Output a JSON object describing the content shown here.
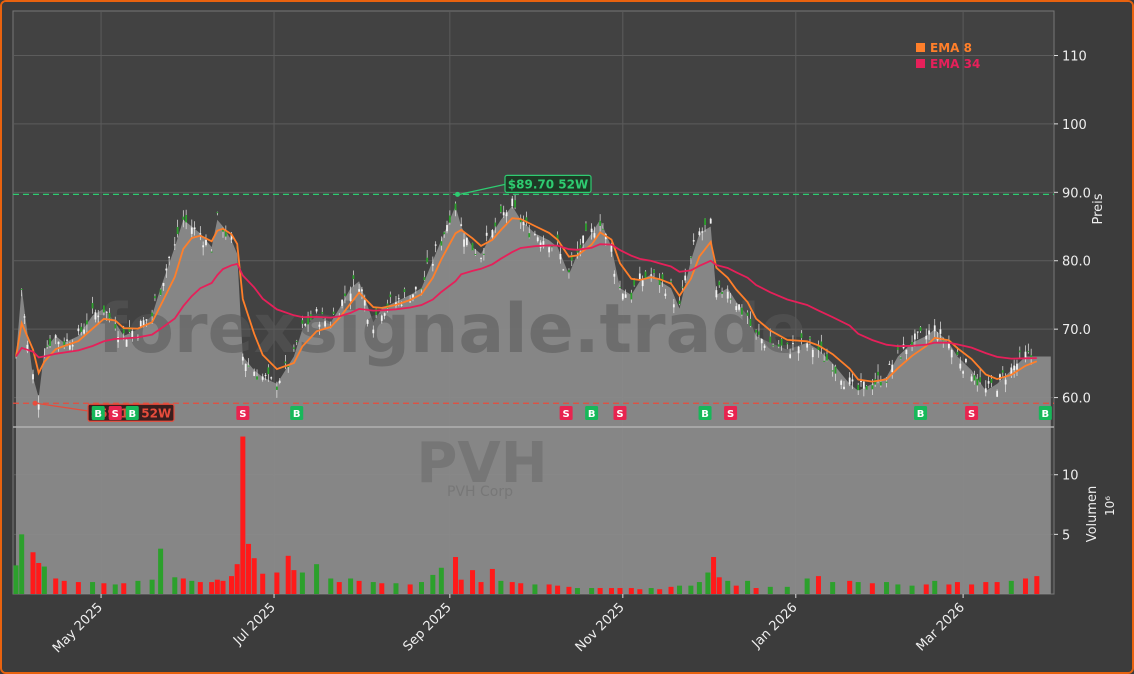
{
  "chart_data": {
    "type": "candlestick",
    "title": "",
    "watermark": "forexsignale.trade",
    "ticker_watermark": "PVH",
    "company_watermark": "PVH Corp",
    "price_axis": {
      "label": "Preis",
      "ticks": [
        "60.0",
        "70.0",
        "80.0",
        "90.0",
        "100",
        "110"
      ],
      "ylim": [
        55.7,
        116.5
      ]
    },
    "volume_axis": {
      "label": "Volumen",
      "multiplier": "10⁶",
      "ticks": [
        "5",
        "10"
      ],
      "ylim": [
        0,
        14
      ]
    },
    "x_axis": {
      "ticks": [
        "May 2025",
        "Jul 2025",
        "Sep 2025",
        "Nov 2025",
        "Jan 2026",
        "Mar 2026"
      ],
      "tick_dates": [
        "2025-05-01",
        "2025-07-01",
        "2025-09-01",
        "2025-11-01",
        "2026-01-01",
        "2026-03-01"
      ],
      "range": [
        "2025-04-01",
        "2026-04-01"
      ]
    },
    "legend": {
      "placement": "top-right",
      "items": [
        {
          "name": "EMA 8",
          "color": "#ff7f2a"
        },
        {
          "name": "EMA 34",
          "color": "#e6205a"
        }
      ]
    },
    "high_52w": {
      "value": 89.7,
      "label": "$89.70 52W",
      "date": "2025-09-03",
      "color": "#2ecc71"
    },
    "low_52w": {
      "value": 59.17,
      "label": "$59.17 52W",
      "date": "2025-04-07",
      "color": "#e74c3c"
    },
    "close_series": [
      [
        "2025-04-01",
        66
      ],
      [
        "2025-04-03",
        76
      ],
      [
        "2025-04-07",
        63
      ],
      [
        "2025-04-09",
        60
      ],
      [
        "2025-04-11",
        67
      ],
      [
        "2025-04-15",
        69
      ],
      [
        "2025-04-18",
        68
      ],
      [
        "2025-04-23",
        69
      ],
      [
        "2025-04-28",
        72
      ],
      [
        "2025-05-02",
        73
      ],
      [
        "2025-05-06",
        71
      ],
      [
        "2025-05-09",
        69
      ],
      [
        "2025-05-14",
        70
      ],
      [
        "2025-05-19",
        72
      ],
      [
        "2025-05-22",
        76
      ],
      [
        "2025-05-27",
        82
      ],
      [
        "2025-05-30",
        86
      ],
      [
        "2025-06-02",
        85
      ],
      [
        "2025-06-05",
        84
      ],
      [
        "2025-06-09",
        82
      ],
      [
        "2025-06-11",
        86
      ],
      [
        "2025-06-13",
        85
      ],
      [
        "2025-06-16",
        83
      ],
      [
        "2025-06-18",
        81
      ],
      [
        "2025-06-20",
        66
      ],
      [
        "2025-06-24",
        64
      ],
      [
        "2025-06-27",
        63
      ],
      [
        "2025-07-02",
        62
      ],
      [
        "2025-07-08",
        66
      ],
      [
        "2025-07-11",
        70
      ],
      [
        "2025-07-16",
        72
      ],
      [
        "2025-07-21",
        71
      ],
      [
        "2025-07-24",
        73
      ],
      [
        "2025-07-28",
        76
      ],
      [
        "2025-07-31",
        77
      ],
      [
        "2025-08-05",
        71
      ],
      [
        "2025-08-08",
        73
      ],
      [
        "2025-08-13",
        74
      ],
      [
        "2025-08-18",
        75
      ],
      [
        "2025-08-22",
        76
      ],
      [
        "2025-08-26",
        80
      ],
      [
        "2025-08-29",
        83
      ],
      [
        "2025-09-03",
        88
      ],
      [
        "2025-09-05",
        85
      ],
      [
        "2025-09-09",
        82
      ],
      [
        "2025-09-12",
        81
      ],
      [
        "2025-09-16",
        84
      ],
      [
        "2025-09-19",
        86
      ],
      [
        "2025-09-23",
        88
      ],
      [
        "2025-09-26",
        86
      ],
      [
        "2025-10-01",
        84
      ],
      [
        "2025-10-06",
        83
      ],
      [
        "2025-10-09",
        82
      ],
      [
        "2025-10-13",
        78
      ],
      [
        "2025-10-16",
        81
      ],
      [
        "2025-10-21",
        84
      ],
      [
        "2025-10-24",
        86
      ],
      [
        "2025-10-28",
        82
      ],
      [
        "2025-10-31",
        76
      ],
      [
        "2025-11-04",
        75
      ],
      [
        "2025-11-07",
        77
      ],
      [
        "2025-11-11",
        78
      ],
      [
        "2025-11-14",
        77
      ],
      [
        "2025-11-18",
        76
      ],
      [
        "2025-11-21",
        73
      ],
      [
        "2025-11-25",
        80
      ],
      [
        "2025-11-28",
        84
      ],
      [
        "2025-12-02",
        85
      ],
      [
        "2025-12-04",
        75
      ],
      [
        "2025-12-08",
        76
      ],
      [
        "2025-12-11",
        74
      ],
      [
        "2025-12-15",
        72
      ],
      [
        "2025-12-18",
        69
      ],
      [
        "2025-12-23",
        68
      ],
      [
        "2025-12-29",
        67
      ],
      [
        "2026-01-05",
        68
      ],
      [
        "2026-01-09",
        67
      ],
      [
        "2026-01-14",
        65
      ],
      [
        "2026-01-20",
        62
      ],
      [
        "2026-01-23",
        61
      ],
      [
        "2026-01-28",
        62
      ],
      [
        "2026-02-02",
        63
      ],
      [
        "2026-02-06",
        66
      ],
      [
        "2026-02-11",
        68
      ],
      [
        "2026-02-16",
        69
      ],
      [
        "2026-02-19",
        70
      ],
      [
        "2026-02-24",
        68
      ],
      [
        "2026-02-27",
        66
      ],
      [
        "2026-03-04",
        64
      ],
      [
        "2026-03-09",
        61
      ],
      [
        "2026-03-13",
        62
      ],
      [
        "2026-03-18",
        64
      ],
      [
        "2026-03-23",
        66
      ],
      [
        "2026-03-27",
        66
      ]
    ],
    "volume_series": [
      [
        "2025-04-01",
        2.4,
        "up"
      ],
      [
        "2025-04-03",
        5.0,
        "up"
      ],
      [
        "2025-04-07",
        3.5,
        "down"
      ],
      [
        "2025-04-09",
        2.6,
        "down"
      ],
      [
        "2025-04-11",
        2.3,
        "up"
      ],
      [
        "2025-04-15",
        1.3,
        "down"
      ],
      [
        "2025-04-18",
        1.1,
        "down"
      ],
      [
        "2025-04-23",
        1.0,
        "down"
      ],
      [
        "2025-04-28",
        1.0,
        "up"
      ],
      [
        "2025-05-02",
        0.9,
        "down"
      ],
      [
        "2025-05-06",
        0.8,
        "up"
      ],
      [
        "2025-05-09",
        0.9,
        "down"
      ],
      [
        "2025-05-14",
        1.1,
        "up"
      ],
      [
        "2025-05-19",
        1.2,
        "up"
      ],
      [
        "2025-05-22",
        3.8,
        "up"
      ],
      [
        "2025-05-27",
        1.4,
        "up"
      ],
      [
        "2025-05-30",
        1.3,
        "down"
      ],
      [
        "2025-06-02",
        1.1,
        "up"
      ],
      [
        "2025-06-05",
        1.0,
        "down"
      ],
      [
        "2025-06-09",
        1.0,
        "down"
      ],
      [
        "2025-06-11",
        1.2,
        "down"
      ],
      [
        "2025-06-13",
        1.1,
        "down"
      ],
      [
        "2025-06-16",
        1.5,
        "down"
      ],
      [
        "2025-06-18",
        2.5,
        "down"
      ],
      [
        "2025-06-20",
        13.2,
        "down"
      ],
      [
        "2025-06-22",
        4.2,
        "down"
      ],
      [
        "2025-06-24",
        3.0,
        "down"
      ],
      [
        "2025-06-27",
        1.7,
        "down"
      ],
      [
        "2025-07-02",
        1.8,
        "down"
      ],
      [
        "2025-07-06",
        3.2,
        "down"
      ],
      [
        "2025-07-08",
        2.0,
        "down"
      ],
      [
        "2025-07-11",
        1.8,
        "up"
      ],
      [
        "2025-07-16",
        2.5,
        "up"
      ],
      [
        "2025-07-21",
        1.3,
        "up"
      ],
      [
        "2025-07-24",
        1.0,
        "down"
      ],
      [
        "2025-07-28",
        1.3,
        "up"
      ],
      [
        "2025-07-31",
        1.1,
        "down"
      ],
      [
        "2025-08-05",
        1.0,
        "up"
      ],
      [
        "2025-08-08",
        0.9,
        "down"
      ],
      [
        "2025-08-13",
        0.9,
        "up"
      ],
      [
        "2025-08-18",
        0.8,
        "down"
      ],
      [
        "2025-08-22",
        1.0,
        "up"
      ],
      [
        "2025-08-26",
        1.6,
        "up"
      ],
      [
        "2025-08-29",
        2.2,
        "up"
      ],
      [
        "2025-09-03",
        3.1,
        "down"
      ],
      [
        "2025-09-05",
        1.2,
        "down"
      ],
      [
        "2025-09-09",
        2.0,
        "down"
      ],
      [
        "2025-09-12",
        1.0,
        "down"
      ],
      [
        "2025-09-16",
        2.1,
        "down"
      ],
      [
        "2025-09-19",
        1.1,
        "up"
      ],
      [
        "2025-09-23",
        1.0,
        "down"
      ],
      [
        "2025-09-26",
        0.9,
        "down"
      ],
      [
        "2025-10-01",
        0.8,
        "up"
      ],
      [
        "2025-10-06",
        0.8,
        "down"
      ],
      [
        "2025-10-09",
        0.7,
        "down"
      ],
      [
        "2025-10-13",
        0.6,
        "down"
      ],
      [
        "2025-10-16",
        0.5,
        "up"
      ],
      [
        "2025-10-21",
        0.5,
        "up"
      ],
      [
        "2025-10-24",
        0.5,
        "down"
      ],
      [
        "2025-10-28",
        0.5,
        "down"
      ],
      [
        "2025-10-31",
        0.5,
        "down"
      ],
      [
        "2025-11-04",
        0.5,
        "down"
      ],
      [
        "2025-11-07",
        0.4,
        "down"
      ],
      [
        "2025-11-11",
        0.5,
        "up"
      ],
      [
        "2025-11-14",
        0.4,
        "down"
      ],
      [
        "2025-11-18",
        0.6,
        "down"
      ],
      [
        "2025-11-21",
        0.7,
        "up"
      ],
      [
        "2025-11-25",
        0.7,
        "up"
      ],
      [
        "2025-11-28",
        1.0,
        "up"
      ],
      [
        "2025-12-01",
        1.8,
        "up"
      ],
      [
        "2025-12-03",
        3.1,
        "down"
      ],
      [
        "2025-12-05",
        1.4,
        "down"
      ],
      [
        "2025-12-08",
        1.1,
        "up"
      ],
      [
        "2025-12-11",
        0.7,
        "down"
      ],
      [
        "2025-12-15",
        1.1,
        "up"
      ],
      [
        "2025-12-18",
        0.5,
        "down"
      ],
      [
        "2025-12-23",
        0.6,
        "up"
      ],
      [
        "2025-12-29",
        0.6,
        "up"
      ],
      [
        "2026-01-05",
        1.3,
        "up"
      ],
      [
        "2026-01-09",
        1.5,
        "down"
      ],
      [
        "2026-01-14",
        1.0,
        "up"
      ],
      [
        "2026-01-20",
        1.1,
        "down"
      ],
      [
        "2026-01-23",
        1.0,
        "up"
      ],
      [
        "2026-01-28",
        0.9,
        "down"
      ],
      [
        "2026-02-02",
        1.0,
        "up"
      ],
      [
        "2026-02-06",
        0.8,
        "up"
      ],
      [
        "2026-02-11",
        0.7,
        "up"
      ],
      [
        "2026-02-16",
        0.8,
        "down"
      ],
      [
        "2026-02-19",
        1.1,
        "up"
      ],
      [
        "2026-02-24",
        0.8,
        "down"
      ],
      [
        "2026-02-27",
        1.0,
        "down"
      ],
      [
        "2026-03-04",
        0.8,
        "down"
      ],
      [
        "2026-03-09",
        1.0,
        "down"
      ],
      [
        "2026-03-13",
        1.0,
        "down"
      ],
      [
        "2026-03-18",
        1.1,
        "up"
      ],
      [
        "2026-03-23",
        1.3,
        "down"
      ],
      [
        "2026-03-27",
        1.5,
        "down"
      ]
    ],
    "signals": [
      {
        "label": "B",
        "date": "2025-04-30",
        "type": "buy"
      },
      {
        "label": "S",
        "date": "2025-05-06",
        "type": "sell"
      },
      {
        "label": "B",
        "date": "2025-05-12",
        "type": "buy"
      },
      {
        "label": "S",
        "date": "2025-06-20",
        "type": "sell"
      },
      {
        "label": "B",
        "date": "2025-07-09",
        "type": "buy"
      },
      {
        "label": "S",
        "date": "2025-10-12",
        "type": "sell"
      },
      {
        "label": "B",
        "date": "2025-10-21",
        "type": "buy"
      },
      {
        "label": "S",
        "date": "2025-10-31",
        "type": "sell"
      },
      {
        "label": "B",
        "date": "2025-11-30",
        "type": "buy"
      },
      {
        "label": "S",
        "date": "2025-12-09",
        "type": "sell"
      },
      {
        "label": "B",
        "date": "2026-02-14",
        "type": "buy"
      },
      {
        "label": "S",
        "date": "2026-03-04",
        "type": "sell"
      },
      {
        "label": "B",
        "date": "2026-03-30",
        "type": "buy"
      }
    ],
    "colors": {
      "up": "#2ca02c",
      "down": "#ff1a1a",
      "buy_badge": "#17b85a",
      "sell_badge": "#e8244f",
      "area": "#8a8a8a"
    }
  }
}
